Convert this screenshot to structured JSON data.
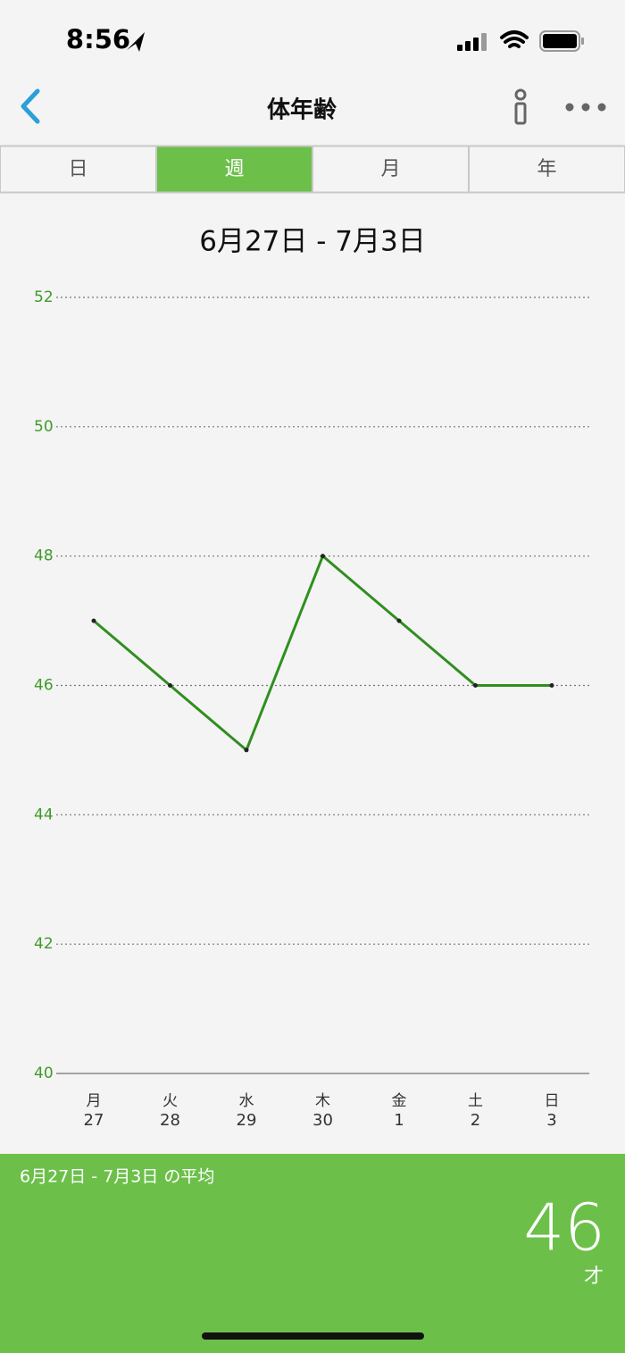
{
  "status_bar": {
    "time": "8:56"
  },
  "nav": {
    "title": "体年齢"
  },
  "tabs": [
    "日",
    "週",
    "月",
    "年"
  ],
  "selected_tab": 1,
  "chart_data": {
    "type": "line",
    "title": "6月27日 - 7月3日",
    "categories": [
      "月",
      "火",
      "水",
      "木",
      "金",
      "土",
      "日"
    ],
    "category_dates": [
      "27",
      "28",
      "29",
      "30",
      "1",
      "2",
      "3"
    ],
    "values": [
      47,
      46,
      45,
      48,
      47,
      46,
      46
    ],
    "color": "#2f8f1f",
    "ylim": [
      40,
      52
    ],
    "yticks": [
      40,
      42,
      44,
      46,
      48,
      50,
      52
    ],
    "grid": true
  },
  "summary": {
    "label": "6月27日 - 7月3日 の平均",
    "value": 46,
    "unit": "才"
  }
}
